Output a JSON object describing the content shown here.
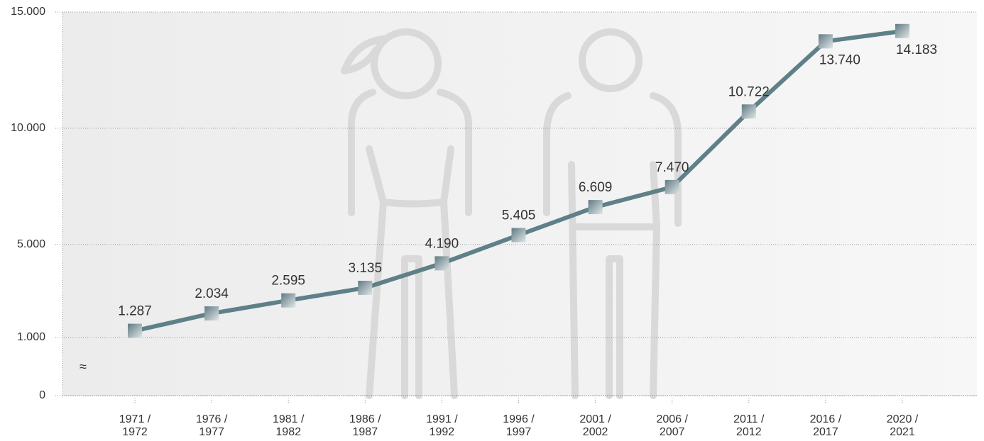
{
  "chart_data": {
    "type": "line",
    "categories": [
      "1971 / 1972",
      "1976 / 1977",
      "1981 / 1982",
      "1986 / 1987",
      "1991 / 1992",
      "1996 / 1997",
      "2001 / 2002",
      "2006 / 2007",
      "2011 / 2012",
      "2016 / 2017",
      "2020 / 2021"
    ],
    "series": [
      {
        "color": "#5f8088",
        "values": [
          1287,
          2034,
          2595,
          3135,
          4190,
          5405,
          6609,
          7470,
          10722,
          13740,
          14183
        ],
        "value_labels": [
          "1.287",
          "2.034",
          "2.595",
          "3.135",
          "4.190",
          "5.405",
          "6.609",
          "7.470",
          "10.722",
          "13.740",
          "14.183"
        ]
      }
    ],
    "ylim": [
      0,
      15000
    ],
    "ybreak": [
      0,
      1000
    ],
    "yticks": [
      0,
      {
        "value": 1000,
        "label": "1.000"
      },
      {
        "value": 5000,
        "label": "5.000"
      },
      {
        "value": 10000,
        "label": "10.000"
      },
      {
        "value": 15000,
        "label": "15.000"
      }
    ],
    "grid": true
  }
}
